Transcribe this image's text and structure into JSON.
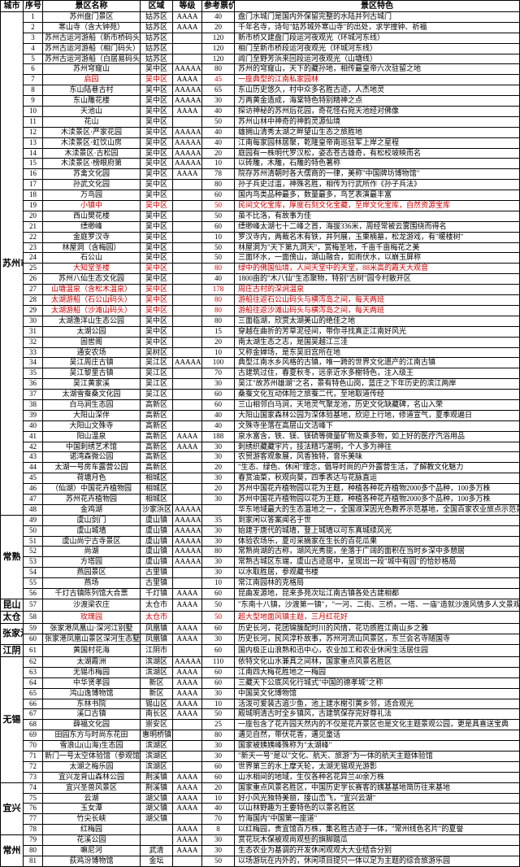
{
  "headers": {
    "city": "城市",
    "seq": "序号",
    "name": "景区名称",
    "area": "区域",
    "grade": "等级",
    "price": "参考票价",
    "feature": "景区特色"
  },
  "groups": [
    {
      "city": "苏州市区",
      "rows": [
        {
          "seq": 1,
          "name": "苏州盘门景区",
          "area": "姑苏区",
          "grade": "AAAA",
          "price": "40",
          "feature": "盘门水城门是国内外保留完整的水陆并列古城门"
        },
        {
          "seq": 2,
          "name": "寒山寺（含大钟苑）",
          "area": "姑苏区",
          "grade": "AAAA",
          "price": "20",
          "feature": "千年名寺，诗句\"姑苏城外寒山寺\"的出处，求学撞钟、祈福"
        },
        {
          "seq": 3,
          "name": "苏州古运河游船（新市桥码头）",
          "area": "姑苏区",
          "grade": "",
          "price": "120",
          "feature": "新市桥又建盘门段运河夜观光（环城河东线）"
        },
        {
          "seq": 4,
          "name": "苏州古运河游船（相门码头）",
          "area": "姑苏区",
          "grade": "",
          "price": "120",
          "feature": "相门至新市桥段运河夜观光（环城河东线）"
        },
        {
          "seq": 5,
          "name": "苏州古运河游船（白居易码头）",
          "area": "姑苏区",
          "grade": "",
          "price": "120",
          "feature": "阊门至野芳浜来回段运河夜观光（山塘线）"
        },
        {
          "seq": 6,
          "name": "苏州穹窿山",
          "area": "吴中区",
          "grade": "AAAAA",
          "price": "80",
          "feature": "苏州的穹窿山，天下的藏孙地，相传最皇帝六次驻留之地"
        },
        {
          "seq": 7,
          "name": "启园",
          "area": "吴中区",
          "grade": "AAAA",
          "price": "45",
          "feature": "一座典型的江南私家园林",
          "red": true
        },
        {
          "seq": 8,
          "name": "东山陆巷古村",
          "area": "吴中区",
          "grade": "AAAAA",
          "price": "65",
          "feature": "东山历史悠久，村中众多名胜古迹，人杰地灵"
        },
        {
          "seq": 9,
          "name": "东山雕花楼",
          "area": "吴中区",
          "grade": "AAAAA",
          "price": "30",
          "feature": "万两黄金造成，海棠特色特别精神之点"
        },
        {
          "seq": 10,
          "name": "天池山",
          "area": "吴中区",
          "grade": "AAAA",
          "price": "40",
          "feature": "探访神秘的苏州后花园，奇花怪石宛天池经对佛像"
        },
        {
          "seq": 11,
          "name": "花山",
          "area": "吴中区",
          "grade": "",
          "price": "50",
          "feature": "苏州山林中神奇的神韵灵源仙境"
        },
        {
          "seq": 12,
          "name": "木渎景区·严家花园",
          "area": "吴中区",
          "grade": "AAAAA",
          "price": "40",
          "feature": "雄拥山清秀太湖之畔望山生态之旅胜地"
        },
        {
          "seq": 13,
          "name": "木渎景区·虹饮山房",
          "area": "吴中区",
          "grade": "AAAAA",
          "price": "40",
          "feature": "江南每家园林居聚，乾隆皇帝南巡驻军上岸之星程"
        },
        {
          "seq": 14,
          "name": "木渎景区·古松园",
          "area": "吴中区",
          "grade": "AAAAA",
          "price": "20",
          "feature": "庭园有一株明代罗汉松，姿态苍古雄奇，有松校坡映而名"
        },
        {
          "seq": 15,
          "name": "木渎景区·榜眼府第",
          "area": "吴中区",
          "grade": "AAAAA",
          "price": "10",
          "feature": "以砖雕，木雕，石雕的特色著称"
        },
        {
          "seq": 16,
          "name": "苏禽文化园",
          "area": "吴中区",
          "grade": "AAAA",
          "price": "78",
          "feature": "院存苏州清朝时各大儒商的一律，美称\"中国牌坊博物馆\""
        },
        {
          "seq": 17,
          "name": "孙武文化园",
          "area": "吴中区",
          "grade": "",
          "price": "80",
          "feature": "孙子兵史过滥，神殊名胜，相传为行武所作《孙子兵法》"
        },
        {
          "seq": 18,
          "name": "万鸟园",
          "area": "吴中区",
          "grade": "",
          "price": "60",
          "feature": "国内鸟类品种最多，数量最多，鸟艺表演最丰富"
        },
        {
          "seq": 19,
          "name": "小镇中",
          "area": "吴中区",
          "grade": "",
          "price": "50",
          "feature": "民间文化宝库，厚度石刻文化宝藏，至岸文化宝库，自然资源宝库",
          "red": true
        },
        {
          "seq": 20,
          "name": "西山樊花楼",
          "area": "吴中区",
          "grade": "",
          "price": "50",
          "feature": "虽不比洛，有故事为佳"
        },
        {
          "seq": 21,
          "name": "缥缈峰",
          "area": "吴中区",
          "grade": "",
          "price": "60",
          "feature": "缥缈峰太湖七十二峰之首，海拔336米，周经常被云雾围绕而得名"
        },
        {
          "seq": 22,
          "name": "金庭罗汉寺",
          "area": "吴中区",
          "grade": "",
          "price": "10",
          "feature": "罗汉寺内，两裁名木有铁，井列展，玉栗楠墓，松龙游戏，有\"暖楼树\""
        },
        {
          "seq": 23,
          "name": "林屋洞（含梅园）",
          "area": "吴中区",
          "grade": "",
          "price": "50",
          "feature": "林屋洞为\"天下第九洞天\"，赏梅圣地，千亩千亩梅花之美"
        },
        {
          "seq": 24,
          "name": "石公山",
          "area": "吴中区",
          "grade": "",
          "price": "50",
          "feature": "三面环水，一面傍山，湖山融合，如雨伏水，以崩玉屏称"
        },
        {
          "seq": 25,
          "name": "大知堂圣楼",
          "area": "吴中区",
          "grade": "",
          "price": "80",
          "feature": "绿中的佛国仙境，人间天堂中的天堂，88米高的霞天大观音",
          "red": true
        },
        {
          "seq": 26,
          "name": "苏州八仙生态文化园",
          "area": "吴中区",
          "grade": "",
          "price": "40",
          "feature": "1800亩的\"木八仙\"生态聚物，特别\"古树\"园令村散开区"
        },
        {
          "seq": 27,
          "name": "山塘温泉（含松木温泉）",
          "area": "吴中区",
          "grade": "",
          "price": "178",
          "feature": "周庄古村的深涧温泉",
          "red": true
        },
        {
          "seq": 28,
          "name": "太湖游船（石公山码头）",
          "area": "吴中区",
          "grade": "",
          "price": "80",
          "feature": "游船往返石公山码头与横泻岛之间，每天两班",
          "red": true
        },
        {
          "seq": 29,
          "name": "太湖游船（沙滩山码头）",
          "area": "吴中区",
          "grade": "",
          "price": "80",
          "feature": "游船往返沙滩山码头与横泻岛之间，每天两班",
          "red": true
        },
        {
          "seq": 30,
          "name": "太湖渔洋山生态公园",
          "area": "吴中区",
          "grade": "",
          "price": "80",
          "feature": "三面临湖，欣赏太湖美山的绝佳之地"
        },
        {
          "seq": 31,
          "name": "太湖公园",
          "area": "吴中区",
          "grade": "",
          "price": "15",
          "feature": "穿越在曲折的芳草泥径间，带你寻找真正江南好风光"
        },
        {
          "seq": 32,
          "name": "固喾阁",
          "area": "吴中区",
          "grade": "",
          "price": "20",
          "feature": "南太湖生态之志，是国吴越江三洼"
        },
        {
          "seq": 33,
          "name": "通安农场",
          "area": "吴树区",
          "grade": "",
          "price": "10",
          "feature": "又称金婵场，是东吴旧宫所在地"
        },
        {
          "seq": 34,
          "name": "吴江周庄古镇",
          "area": "吴江区",
          "grade": "AAAAA",
          "price": "100",
          "feature": "典型江南水乡风格的古镇，唯一跨的世界文化遗产的江南古镇"
        },
        {
          "seq": 35,
          "name": "吴江黎里古镇",
          "area": "吴江区",
          "grade": "",
          "price": "70",
          "feature": "古建筑过住，春夏秋冬，远亲近水多榭特色，注入级王"
        },
        {
          "seq": 36,
          "name": "吴江黄家溪",
          "area": "吴江区",
          "grade": "",
          "price": "30",
          "feature": "吴江\"故苏州雄湖\"之名，景有特色山岗，蓝庄之下年历史的滨江两岸"
        },
        {
          "seq": 37,
          "name": "太湖雪蚕桑文化园",
          "area": "吴江区",
          "grade": "",
          "price": "60",
          "feature": "桑蚕文化互动体险之旅蚕二代，至地取道传经"
        },
        {
          "seq": 38,
          "name": "白马涧生态园",
          "area": "高新区",
          "grade": "",
          "price": "60",
          "feature": "三山相邻白马涧，天地灵气聚龙池，历史文化缺藏碑，名山入荣"
        },
        {
          "seq": 39,
          "name": "大阳山深伴",
          "area": "高新区",
          "grade": "",
          "price": "40",
          "feature": "大阳山国家森林公园为深体验基地，欣迎上行地，修道宣气，夏季观遍日"
        },
        {
          "seq": 40,
          "name": "大阳山文殊寺",
          "area": "高新区",
          "grade": "",
          "price": "40",
          "feature": "文殊寺坐落在高层山文洁峰下"
        },
        {
          "seq": 41,
          "name": "阳山温泉",
          "area": "高新区",
          "grade": "AAAA",
          "price": "188",
          "feature": "泉水富含，铁、镁、镁硫等微量矿物及乘多物，如上好的医疗汽浴用品"
        },
        {
          "seq": 42,
          "name": "中国刺绣艺术馆",
          "area": "高新区",
          "grade": "AAAA",
          "price": "30",
          "feature": "刺绣织藏藏宇片，技法精巧湛明，个人多为神往"
        },
        {
          "seq": 43,
          "name": "诺湾森微公园",
          "area": "高新区",
          "grade": "",
          "price": "30",
          "feature": "农贸游客观象展，风香独特，音乐美味"
        },
        {
          "seq": 44,
          "name": "太湖一号房车露营公园",
          "area": "高新区",
          "grade": "",
          "price": "20",
          "feature": "\"生态、绿色、休闲\"理念，倡导时尚的户外露营生活，了解教文化魅力"
        },
        {
          "seq": 45,
          "name": "荷塘月色",
          "area": "相城区",
          "grade": "",
          "price": "30",
          "feature": "春赏油菜，秋观向葵，四季表达与花脉直运"
        },
        {
          "seq": 46,
          "name": "（仙湖）中国花卉植物园",
          "area": "相城区",
          "grade": "",
          "price": "20",
          "feature": "苏州中国花卉植物园以花为王题，种植各种花卉植物2000多个品种，100多万株"
        },
        {
          "seq": 47,
          "name": "苏州花卉植物园",
          "area": "相城区",
          "grade": "",
          "price": "30",
          "feature": "苏州中国花卉植物园以花为王题，种植各种花卉植物2000多个品种，100多万株"
        },
        {
          "seq": 48,
          "name": "金鸡湖",
          "area": "沙家浜区",
          "grade": "AAAAA",
          "price": "",
          "feature": "华东地域最大的生态温地之一，全国淑深因光色教养示范基地，全国百家农业旅点示范景区"
        }
      ]
    },
    {
      "city": "常熟",
      "rows": [
        {
          "seq": 49,
          "name": "虞山剑门",
          "area": "虞山镇",
          "grade": "AAAAA",
          "price": "35",
          "feature": "到家闲以答案闻名于世"
        },
        {
          "seq": 50,
          "name": "虞山城墙",
          "area": "虞山镇",
          "grade": "AAAAA",
          "price": "30",
          "feature": "始建于唐代的城墙，登上城墙以可东真城续风光"
        },
        {
          "seq": 51,
          "name": "虞山尚宁古寺景区",
          "area": "虞山镇",
          "grade": "AAAAA",
          "price": "30",
          "feature": "体验农场乐，夏可采摘家在生长的百花瓜果"
        },
        {
          "seq": 52,
          "name": "尚湖",
          "area": "虞山镇",
          "grade": "AAAAA",
          "price": "80",
          "feature": "常熟尚湖的古称，湖风光秀旎，坐落于广阔的面积在当时乡深中多憩居"
        },
        {
          "seq": 53,
          "name": "方塔园",
          "area": "虞山镇",
          "grade": "AAAAA",
          "price": "30",
          "feature": "常熟古城区东端，虞山古迹居中，呈现出一段\"城中有园\"的恰妙格局"
        },
        {
          "seq": 54,
          "name": "燕园景区",
          "area": "古里镇",
          "grade": "",
          "price": "30",
          "feature": "以水取胜居，参观藏书楼"
        },
        {
          "seq": 55,
          "name": "燕场",
          "area": "古里镇",
          "grade": "",
          "price": "10",
          "feature": "常江南园林的克格局"
        },
        {
          "seq": 56,
          "name": "千灯古镇陈列馆大合票",
          "area": "千灯镇",
          "grade": "AAAA",
          "price": "60",
          "feature": "昆曲发源地，昆来多苑次坛江南古镇各处古建相都"
        }
      ]
    },
    {
      "city": "昆山",
      "rows": [
        {
          "seq": 57,
          "name": "沙渡梁农庄",
          "area": "太仓市",
          "grade": "AAAA",
          "price": "50",
          "feature": "\"东南十八镇，沙渡第一镇\"，\"一河、二街、三桥，一塔、一庙\"造就沙渡风情多人文景观"
        }
      ]
    },
    {
      "city": "太仓",
      "rows": [
        {
          "seq": 58,
          "name": "玫瑰园",
          "area": "太仓市",
          "grade": "",
          "price": "50",
          "feature": "超大型地面风镇主题，三月红花好",
          "red": true
        }
      ]
    },
    {
      "city": "张家港",
      "rows": [
        {
          "seq": 59,
          "name": "张家港凤凰山·深河江别墅",
          "area": "凤凰镇",
          "grade": "AAAA",
          "price": "60",
          "feature": "历史长河，花团锦簇配时川的风情，花功质胜江南山乡之雅"
        },
        {
          "seq": 60,
          "name": "张家港凤凰山景区深河生态墅",
          "area": "凤凰镇",
          "grade": "AAAA",
          "price": "30",
          "feature": "历史长河，民风淳朴故事，苏州河流山风景区，东兰会名寺随国寺"
        }
      ]
    },
    {
      "city": "江阴",
      "rows": [
        {
          "seq": 61,
          "name": "黄国村花海",
          "area": "江阴市",
          "grade": "",
          "price": "60",
          "feature": "国内极正山浪熟和迅中心，农业加工和农业休闲生活居住园"
        }
      ]
    },
    {
      "city": "无锡",
      "rows": [
        {
          "seq": 62,
          "name": "太湖霞洲",
          "area": "滨湖区",
          "grade": "AAAAA",
          "price": "110",
          "feature": "依特文化山水兼具之间林，国家重点风景名胜区"
        },
        {
          "seq": 63,
          "name": "无锡市梅园",
          "area": "滨湖区",
          "grade": "AAAA",
          "price": "60",
          "feature": "江南四大梅花胜地之一梅园"
        },
        {
          "seq": 64,
          "name": "中华贤孝园",
          "area": "新区",
          "grade": "AAAA",
          "price": "60",
          "feature": "三藏天下公底风化行城式\"中国的德孝城\"之称"
        },
        {
          "seq": 65,
          "name": "鸿山逸博物馆",
          "area": "新区",
          "grade": "AAAA",
          "price": "30",
          "feature": "中国吴文化博物馆"
        },
        {
          "seq": 66,
          "name": "东林书院",
          "area": "锡山区",
          "grade": "AAAA",
          "price": "10",
          "feature": "活泼可爱装古追少鱼，池上建水榭引黄乡邻，适合观光"
        },
        {
          "seq": 67,
          "name": "溪口古镇",
          "area": "南长区",
          "grade": "AAAA",
          "price": "50",
          "feature": "殿城明清古时全乡镇风，古建筑保存完好尊礼法"
        },
        {
          "seq": 68,
          "name": "薛福文化园",
          "area": "崇安区",
          "grade": "",
          "price": "25",
          "feature": "一座包含了花卉园天然内的不仅是花卉景区也是文化主题景观公园，更是具喜送宝典"
        },
        {
          "seq": 69,
          "name": "田园东方与时尚东花田",
          "area": "惠明桥镇",
          "grade": "",
          "price": "80",
          "feature": "遇见自然，带伏花香，遇见童话"
        },
        {
          "seq": 70,
          "name": "雪浪山(山海)生态园",
          "area": "滨湖区",
          "grade": "",
          "price": "30",
          "feature": "国家被姨姨峰殊称为\"太湖峰\""
        },
        {
          "seq": 71,
          "name": "新门一号太空体验馆（参观馆）",
          "area": "滨湖区",
          "grade": "",
          "price": "30",
          "feature": "\"新天一号\"是以\"文化、航天、旅游\"为一体的航天主题体验馆"
        },
        {
          "seq": 72,
          "name": "太湖之梅乐园",
          "area": "滨湖区",
          "grade": "",
          "price": "60",
          "feature": "世界第三的水上摩天轮，太湖无锡观光游影"
        },
        {
          "seq": 73,
          "name": "宜兴龙背山森林公园",
          "area": "荆溪镇",
          "grade": "AAAA",
          "price": "60",
          "feature": "山水相间的地域，生仅各种名花异兰40余万株"
        }
      ]
    },
    {
      "city": "宜兴",
      "rows": [
        {
          "seq": 74,
          "name": "宜兴圣兽风景区",
          "area": "荆溪镇",
          "grade": "AAAA",
          "price": "20",
          "feature": "国家重点风景名胜区，中国历史学长赛客的姨基基地简历往来基地"
        },
        {
          "seq": 75,
          "name": "云湖",
          "area": "湖父镇",
          "grade": "AAAA",
          "price": "10",
          "feature": "好小风光独特美丽，接山峦飞，\"宜兴云湖\""
        },
        {
          "seq": 76,
          "name": "玉女潭",
          "area": "湖父镇",
          "grade": "AAAA",
          "price": "40",
          "feature": "以山林野趣为王要特色的以景名胜区"
        },
        {
          "seq": 77,
          "name": "竹尖长峡",
          "area": "湖父镇",
          "grade": "",
          "price": "70",
          "feature": "竹海国内\"中国第一座道\""
        },
        {
          "seq": 78,
          "name": "红梅园",
          "area": "",
          "grade": "AAAA",
          "price": "8",
          "feature": "以红梅园，贵宜馆百万株，集名胜古迹于一体，\"常州线色名片\"的夏誉"
        }
      ]
    },
    {
      "city": "常州",
      "rows": [
        {
          "seq": 79,
          "name": "花溪公园",
          "area": "",
          "grade": "AAAA",
          "price": "30",
          "feature": "赏花玩木保被观尚观些的旗脚踏瓜"
        },
        {
          "seq": 80,
          "name": "嘛尼河",
          "area": "武清",
          "grade": "AAAA",
          "price": "30",
          "feature": "生态农业为基调的开发休闲观观大大业结合分别"
        },
        {
          "seq": 81,
          "name": "荻鸡汾博物馆",
          "area": "金坛",
          "grade": "",
          "price": "50",
          "feature": "以场游玩在内外的，休闲项目提只一体以足为主题的综合旅游乐园"
        }
      ]
    }
  ]
}
